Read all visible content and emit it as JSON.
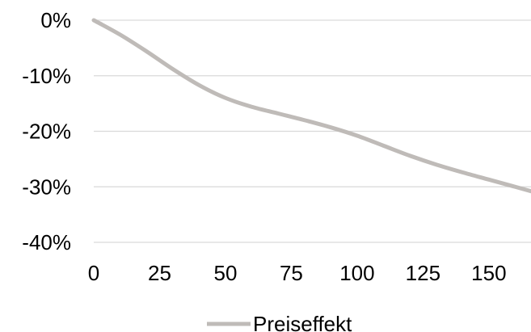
{
  "chart_data": {
    "type": "line",
    "title": "",
    "xlabel": "",
    "ylabel": "",
    "xlim": [
      0,
      166
    ],
    "ylim": [
      -40,
      0
    ],
    "x_ticks": [
      0,
      25,
      50,
      75,
      100,
      125,
      150
    ],
    "x_tick_labels": [
      "0",
      "25",
      "50",
      "75",
      "100",
      "125",
      "150"
    ],
    "y_ticks": [
      0,
      -10,
      -20,
      -30,
      -40
    ],
    "y_tick_labels": [
      "0%",
      "-10%",
      "-20%",
      "-30%",
      "-40%"
    ],
    "grid": "horizontal",
    "legend_position": "bottom",
    "series": [
      {
        "name": "Preiseffekt",
        "color": "#bfbbb8",
        "x": [
          0,
          10,
          20,
          30,
          40,
          50,
          60,
          70,
          80,
          90,
          100,
          110,
          120,
          130,
          140,
          150,
          160,
          166
        ],
        "values": [
          0,
          -2.6,
          -5.6,
          -8.8,
          -11.7,
          -14.0,
          -15.6,
          -16.8,
          -18.0,
          -19.3,
          -20.8,
          -22.6,
          -24.4,
          -26.0,
          -27.4,
          -28.7,
          -30.0,
          -30.8
        ]
      }
    ]
  }
}
